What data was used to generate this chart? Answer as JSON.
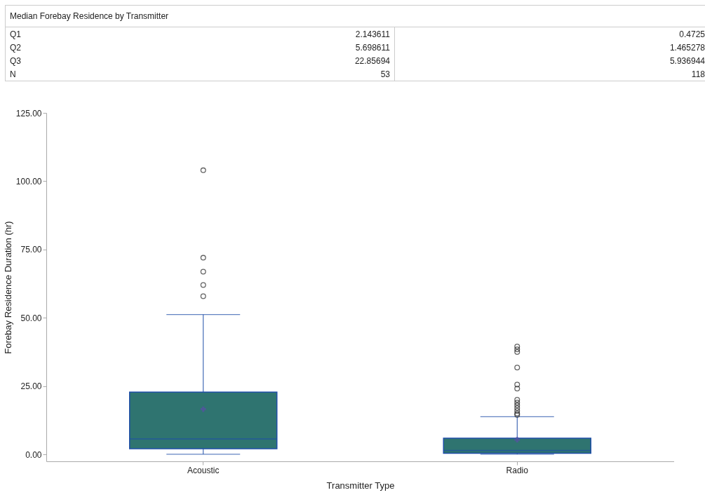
{
  "chart_data": {
    "type": "box",
    "title": "Median Forebay Residence by Transmitter",
    "annotations": [
      "Q1",
      "2.143611",
      "0.4725",
      "Q2",
      "5.698611",
      "1.465278",
      "Q3",
      "22.85694",
      "5.936944",
      "N",
      "53",
      "118"
    ],
    "categories": [
      "Acoustic",
      "Radio"
    ],
    "boxes": [
      {
        "low": 0.1,
        "q1": 2.143611,
        "median": 5.698611,
        "q3": 22.85694,
        "high": 51.2,
        "mean": 16.6,
        "outliers": [
          57.9,
          62.0,
          66.9,
          72.0,
          104.0
        ]
      },
      {
        "low": 0.1,
        "q1": 0.4725,
        "median": 1.465278,
        "q3": 5.936944,
        "high": 13.8,
        "mean": 5.4,
        "outliers": [
          14.5,
          15,
          16,
          17,
          18,
          19,
          20,
          24.1,
          25.6,
          31.8,
          37.5,
          38.5,
          39.5
        ]
      }
    ],
    "color": "#2f7470",
    "xlabel": "Transmitter Type",
    "ylabel": "Forebay Residence Duration (hr)",
    "ylim": [
      -2.5,
      125
    ],
    "yticks": [
      {
        "value": 0,
        "label": "0.00"
      },
      {
        "value": 25,
        "label": "25.00"
      },
      {
        "value": 50,
        "label": "50.00"
      },
      {
        "value": 75,
        "label": "75.00"
      },
      {
        "value": 100,
        "label": "100.00"
      },
      {
        "value": 125,
        "label": "125.00"
      }
    ],
    "grid": false,
    "marker": "circle"
  }
}
